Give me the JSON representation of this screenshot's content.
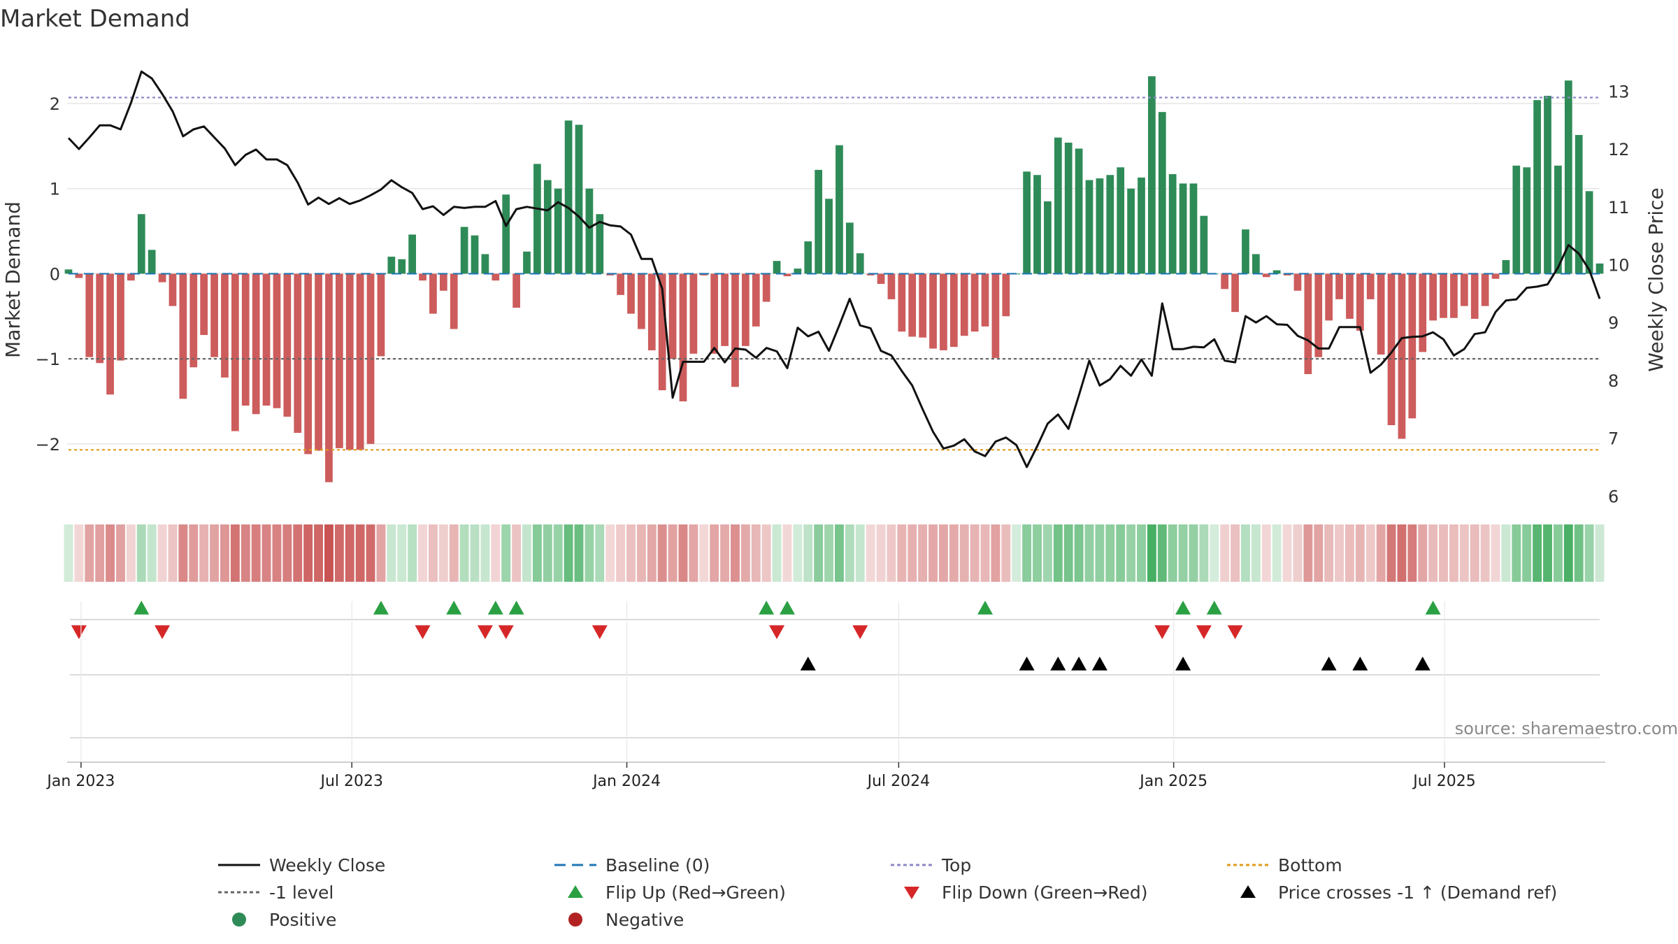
{
  "title": "Market Demand",
  "source": "source: sharemaestro.com",
  "colors": {
    "positive": "#2e8b57",
    "negative": "#cd5c5c",
    "price": "#111111",
    "baseline": "#1f77b4",
    "top": "#8c89c7",
    "minus1": "#666666",
    "bottom": "#e09b1a",
    "flip_up": "#2aa043",
    "flip_down": "#d62728",
    "cross": "#000000",
    "grid": "#e6e6e6",
    "source_text": "#888888"
  },
  "chart_data": {
    "type": "bar+line",
    "title": "Market Demand",
    "ylabel_left": "Market Demand",
    "ylabel_right": "Weekly Close Price",
    "ylim_left": [
      -2.7,
      2.6
    ],
    "ylim_right": [
      5.87,
      13.67
    ],
    "yticks_left": [
      "2",
      "1",
      "0",
      "−1",
      "−2"
    ],
    "yticks_left_values": [
      2,
      1,
      0,
      -1,
      -2
    ],
    "yticks_right": [
      "13",
      "12",
      "11",
      "10",
      "9",
      "8",
      "7",
      "6"
    ],
    "yticks_right_values": [
      13,
      12,
      11,
      10,
      9,
      8,
      7,
      6
    ],
    "x_start_index": 0,
    "x_end_index": 145,
    "x_ticks": [
      {
        "label": "Jan 2023",
        "index": 1.2
      },
      {
        "label": "Jul 2023",
        "index": 27.2
      },
      {
        "label": "Jan 2024",
        "index": 53.6
      },
      {
        "label": "Jul 2024",
        "index": 79.7
      },
      {
        "label": "Jan 2025",
        "index": 106.1
      },
      {
        "label": "Jul 2025",
        "index": 132.1
      }
    ],
    "reference_lines": {
      "top": 2.07,
      "minus1": -1.0,
      "bottom": -2.07,
      "baseline": 0
    },
    "demand": [
      0.05,
      -0.05,
      -0.98,
      -1.05,
      -1.42,
      -1.02,
      -0.08,
      0.7,
      0.28,
      -0.1,
      -0.38,
      -1.47,
      -1.1,
      -0.72,
      -0.98,
      -1.22,
      -1.85,
      -1.55,
      -1.65,
      -1.55,
      -1.58,
      -1.68,
      -1.87,
      -2.12,
      -2.08,
      -2.45,
      -2.05,
      -2.07,
      -2.07,
      -2.0,
      -0.97,
      0.2,
      0.17,
      0.46,
      -0.08,
      -0.47,
      -0.2,
      -0.65,
      0.55,
      0.45,
      0.23,
      -0.08,
      0.93,
      -0.4,
      0.26,
      1.29,
      1.1,
      1.0,
      1.8,
      1.75,
      1.0,
      0.7,
      -0.02,
      -0.25,
      -0.47,
      -0.65,
      -0.9,
      -1.37,
      -1.0,
      -1.5,
      -0.94,
      -0.02,
      -0.94,
      -0.85,
      -1.33,
      -0.85,
      -0.62,
      -0.33,
      0.15,
      -0.03,
      0.06,
      0.38,
      1.22,
      0.88,
      1.51,
      0.6,
      0.24,
      -0.02,
      -0.12,
      -0.3,
      -0.68,
      -0.74,
      -0.75,
      -0.88,
      -0.9,
      -0.86,
      -0.73,
      -0.68,
      -0.62,
      -0.99,
      -0.5,
      0.0,
      1.2,
      1.16,
      0.85,
      1.6,
      1.54,
      1.47,
      1.1,
      1.12,
      1.16,
      1.25,
      1.0,
      1.13,
      2.32,
      1.9,
      1.17,
      1.06,
      1.06,
      0.68,
      0.0,
      -0.18,
      -0.45,
      0.52,
      0.23,
      -0.04,
      0.04,
      -0.02,
      -0.2,
      -1.18,
      -0.98,
      -0.55,
      -0.3,
      -0.53,
      -0.67,
      -0.3,
      -0.95,
      -1.78,
      -1.94,
      -1.7,
      -0.92,
      -0.55,
      -0.52,
      -0.52,
      -0.38,
      -0.53,
      -0.38,
      -0.06,
      0.16,
      1.27,
      1.25,
      2.04,
      2.09,
      1.27,
      2.27,
      1.63,
      0.97,
      0.12
    ],
    "price": [
      12.19,
      12.0,
      12.2,
      12.41,
      12.41,
      12.34,
      12.8,
      13.34,
      13.22,
      12.95,
      12.65,
      12.22,
      12.34,
      12.39,
      12.2,
      12.01,
      11.72,
      11.9,
      11.99,
      11.82,
      11.82,
      11.72,
      11.42,
      11.04,
      11.16,
      11.05,
      11.15,
      11.05,
      11.11,
      11.2,
      11.3,
      11.46,
      11.34,
      11.24,
      10.96,
      11.01,
      10.86,
      11.0,
      10.98,
      11.0,
      11.0,
      11.1,
      10.67,
      10.96,
      11.0,
      10.97,
      10.94,
      11.08,
      10.98,
      10.83,
      10.64,
      10.74,
      10.68,
      10.66,
      10.52,
      10.1,
      10.1,
      9.58,
      7.7,
      8.32,
      8.32,
      8.32,
      8.56,
      8.31,
      8.55,
      8.53,
      8.39,
      8.56,
      8.5,
      8.21,
      8.91,
      8.76,
      8.84,
      8.51,
      8.95,
      9.41,
      8.95,
      8.9,
      8.51,
      8.43,
      8.16,
      7.91,
      7.5,
      7.11,
      6.82,
      6.87,
      6.98,
      6.77,
      6.69,
      6.94,
      7.01,
      6.88,
      6.5,
      6.86,
      7.25,
      7.41,
      7.16,
      7.74,
      8.34,
      7.91,
      8.02,
      8.25,
      8.08,
      8.36,
      8.08,
      9.33,
      8.54,
      8.54,
      8.58,
      8.57,
      8.71,
      8.34,
      8.31,
      9.11,
      9.0,
      9.11,
      8.97,
      8.96,
      8.77,
      8.69,
      8.55,
      8.55,
      8.92,
      8.92,
      8.92,
      8.13,
      8.27,
      8.48,
      8.73,
      8.75,
      8.76,
      8.83,
      8.71,
      8.43,
      8.54,
      8.8,
      8.83,
      9.18,
      9.38,
      9.4,
      9.6,
      9.62,
      9.66,
      9.95,
      10.34,
      10.19,
      9.91,
      9.41
    ],
    "flip_up_indices": [
      7,
      30,
      37,
      41,
      43,
      67,
      69,
      88,
      107,
      110,
      131
    ],
    "flip_down_indices": [
      1,
      9,
      34,
      40,
      42,
      51,
      68,
      76,
      105,
      109,
      112
    ],
    "cross_up_indices": [
      71,
      92,
      95,
      97,
      99,
      107,
      121,
      124,
      130
    ],
    "legend": [
      {
        "label": "Weekly Close",
        "kind": "line",
        "color": "#111111"
      },
      {
        "label": "Baseline (0)",
        "kind": "dash-long",
        "color": "#1f77b4"
      },
      {
        "label": "Top",
        "kind": "dot",
        "color": "#8c89c7"
      },
      {
        "label": "Bottom",
        "kind": "dot",
        "color": "#e09b1a"
      },
      {
        "label": "-1 level",
        "kind": "dot",
        "color": "#666666"
      },
      {
        "label": "Flip Up (Red→Green)",
        "kind": "tri-up",
        "color": "#2aa043"
      },
      {
        "label": "Flip Down (Green→Red)",
        "kind": "tri-down",
        "color": "#d62728"
      },
      {
        "label": "Price crosses -1 ↑ (Demand ref)",
        "kind": "tri-up",
        "color": "#000000"
      },
      {
        "label": "Positive",
        "kind": "circle",
        "color": "#2e8b57"
      },
      {
        "label": "Negative",
        "kind": "circle",
        "color": "#b22222"
      }
    ]
  }
}
